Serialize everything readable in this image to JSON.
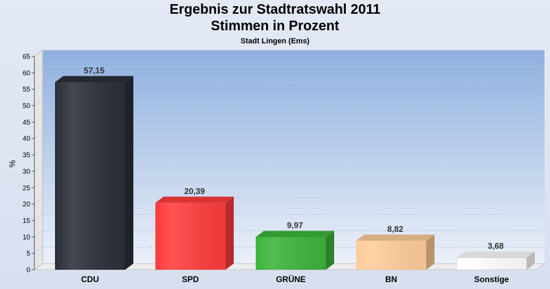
{
  "chart_data": {
    "type": "bar",
    "title": "Ergebnis zur Stadtratswahl 2011",
    "subtitle": "Stimmen in Prozent",
    "caption": "Stadt Lingen (Ems)",
    "ylabel": "%",
    "ylim": [
      0,
      65
    ],
    "yticks": [
      0,
      5,
      10,
      15,
      20,
      25,
      30,
      35,
      40,
      45,
      50,
      55,
      60,
      65
    ],
    "grid": true,
    "categories": [
      "CDU",
      "SPD",
      "GRÜNE",
      "BN",
      "Sonstige"
    ],
    "values": [
      57.15,
      20.39,
      9.97,
      8.82,
      3.68
    ],
    "value_labels": [
      "57,15",
      "20,39",
      "9,97",
      "8,82",
      "3,68"
    ],
    "colors": [
      "#2b2f38",
      "#ff3c3c",
      "#3cb43c",
      "#ffcc99",
      "#ffffff"
    ]
  }
}
